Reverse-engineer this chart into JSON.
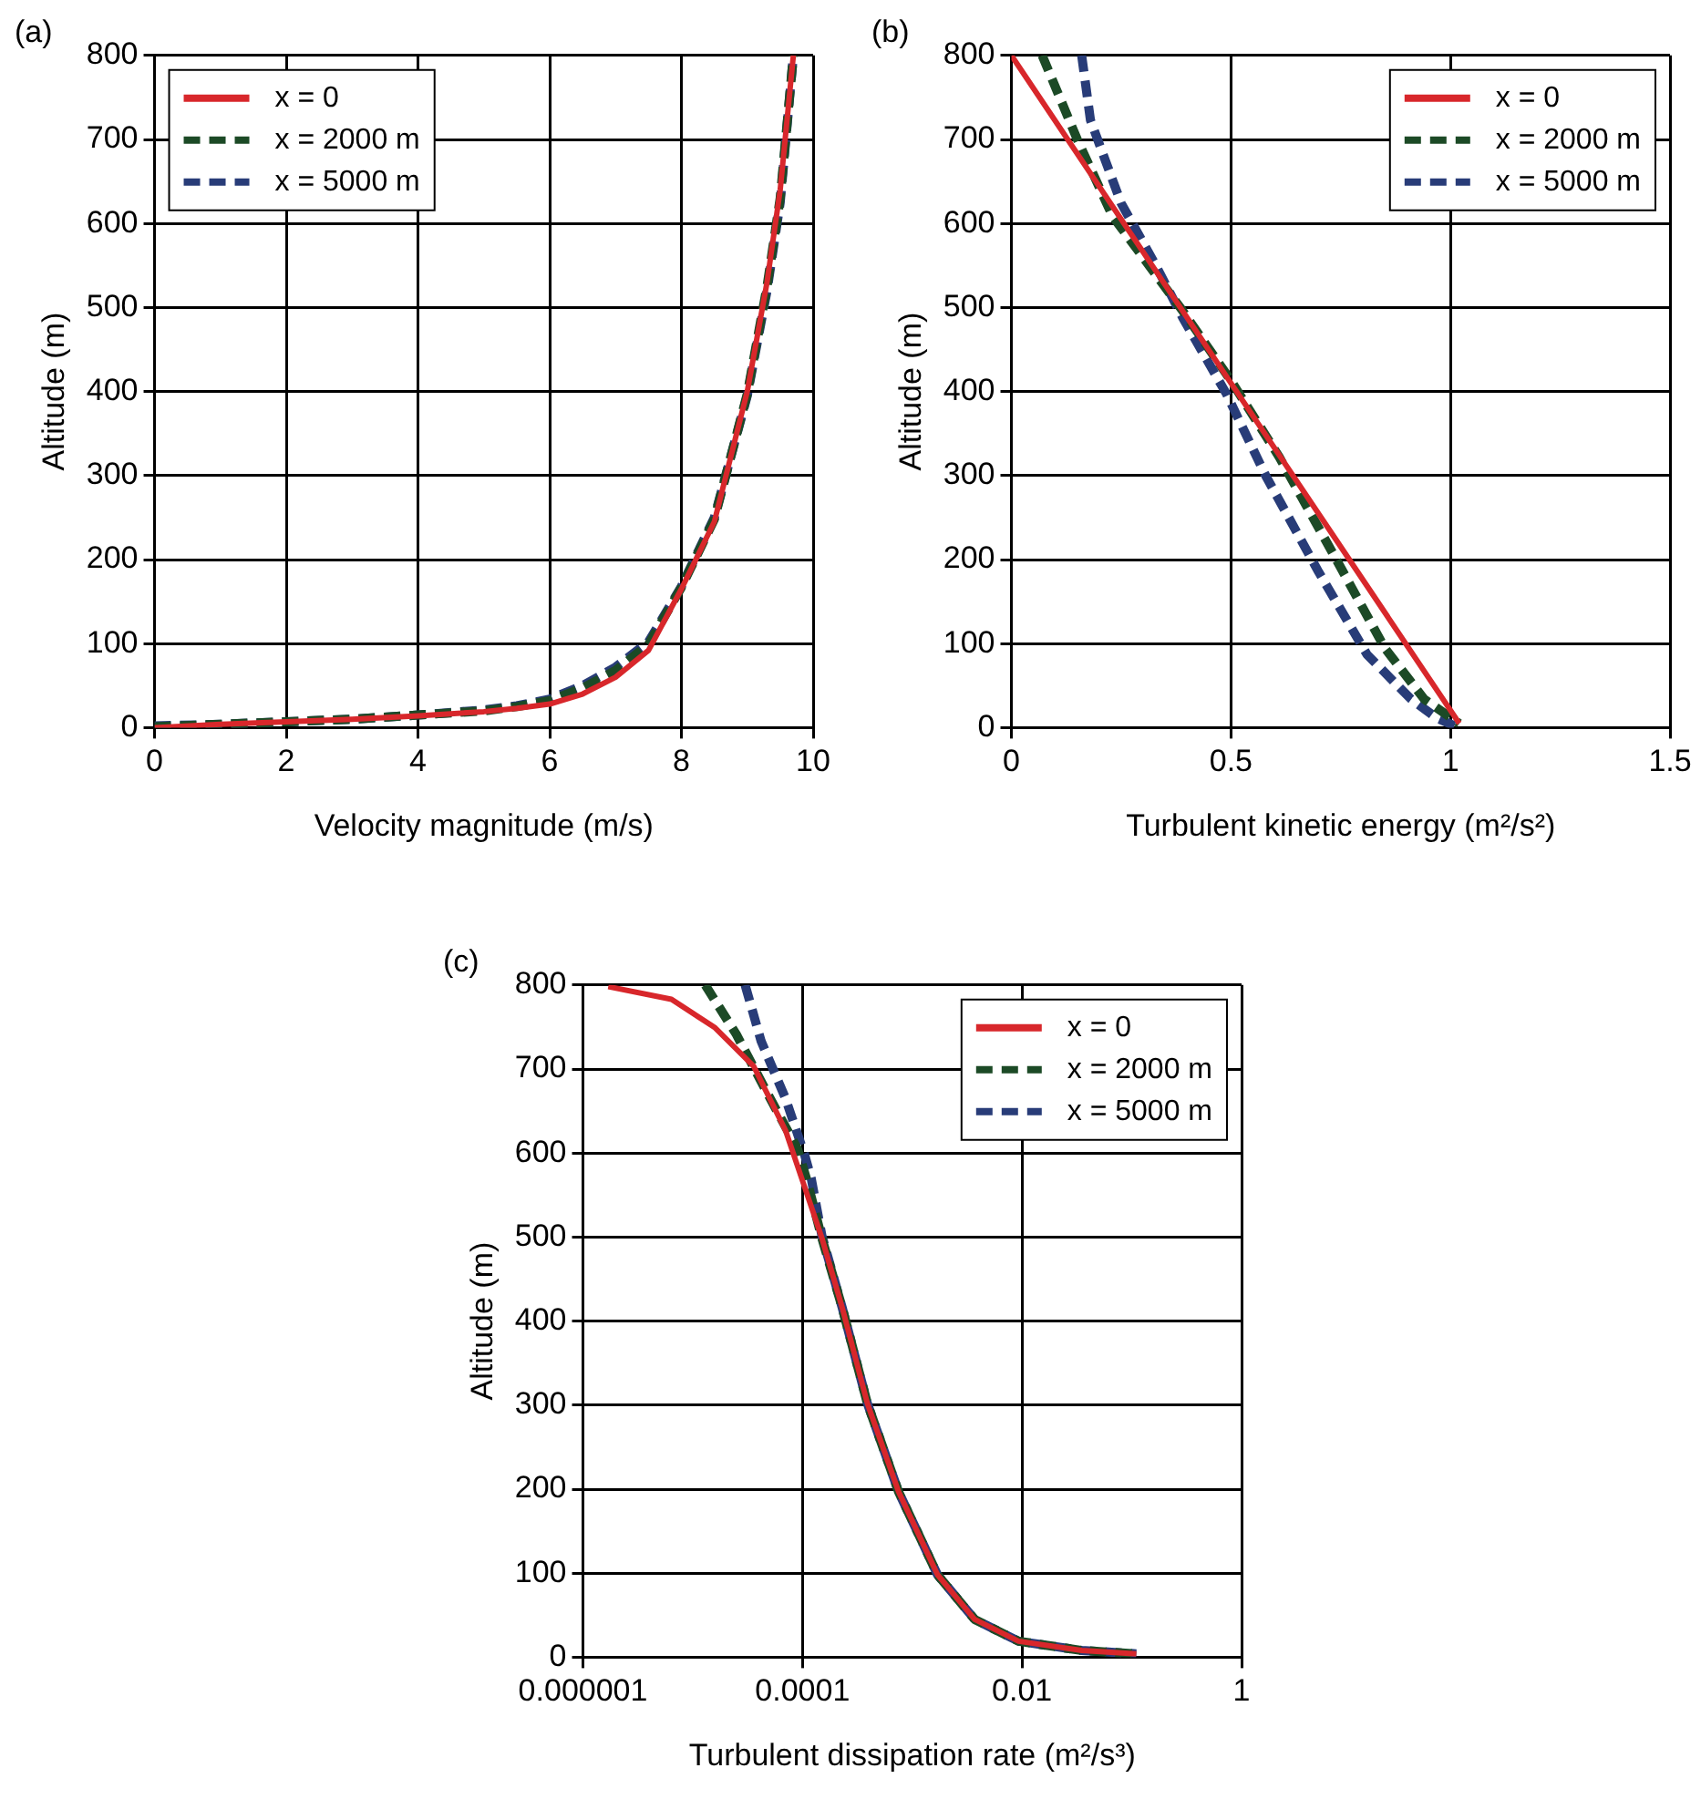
{
  "chart_data": [
    {
      "type": "line",
      "title": "(a)",
      "xlabel": "Velocity magnitude (m/s)",
      "ylabel": "Altitude (m)",
      "xlim": [
        0,
        10
      ],
      "xticks": [
        0,
        2,
        4,
        6,
        8,
        10
      ],
      "ylim": [
        0,
        800
      ],
      "yticks": [
        0,
        100,
        200,
        300,
        400,
        500,
        600,
        700,
        800
      ],
      "grid": true,
      "legend": "top left",
      "marker": "none",
      "series": [
        {
          "name": "x = 0",
          "color": "#d8272b",
          "line_style": "solid",
          "x": [
            0,
            1,
            2,
            3,
            4,
            5,
            5.5,
            6,
            6.5,
            7,
            7.5,
            8,
            8.5,
            9,
            9.3,
            9.5,
            9.7
          ],
          "values": [
            0,
            4,
            7,
            10,
            14,
            19,
            23,
            28,
            40,
            60,
            92,
            165,
            245,
            400,
            530,
            640,
            800
          ]
        },
        {
          "name": "x = 2000 m",
          "color": "#1c4a26",
          "line_style": "dashed",
          "x": [
            0,
            1,
            2,
            3,
            4,
            5,
            5.5,
            6,
            6.5,
            7,
            7.5,
            8,
            8.5,
            9,
            9.3,
            9.5,
            9.7
          ],
          "values": [
            1,
            4,
            7,
            10,
            15,
            20,
            25,
            32,
            47,
            68,
            99,
            167,
            248,
            397,
            525,
            630,
            800
          ]
        },
        {
          "name": "x = 5000 m",
          "color": "#283c78",
          "line_style": "dashed",
          "x": [
            0,
            1,
            2,
            3,
            4,
            5,
            5.5,
            6,
            6.5,
            7,
            7.5,
            8,
            8.5,
            9,
            9.3,
            9.5,
            9.7
          ],
          "values": [
            2,
            4,
            7,
            10,
            15,
            21,
            26,
            34,
            50,
            72,
            102,
            168,
            250,
            395,
            520,
            625,
            800
          ]
        }
      ]
    },
    {
      "type": "line",
      "title": "(b)",
      "xlabel": "Turbulent kinetic energy (m²/s²)",
      "ylabel": "Altitude (m)",
      "xlim": [
        0,
        1.5
      ],
      "xticks": [
        0,
        0.5,
        1,
        1.5
      ],
      "ylim": [
        0,
        800
      ],
      "yticks": [
        0,
        100,
        200,
        300,
        400,
        500,
        600,
        700,
        800
      ],
      "grid": true,
      "legend": "top right",
      "marker": "none",
      "series": [
        {
          "name": "x = 0",
          "color": "#d8272b",
          "line_style": "solid",
          "x": [
            0,
            0.5,
            1.02
          ],
          "values": [
            800,
            410,
            5
          ]
        },
        {
          "name": "x = 2000 m",
          "color": "#1c4a26",
          "line_style": "dashed",
          "x": [
            0.07,
            0.15,
            0.23,
            0.39,
            0.5,
            0.61,
            0.74,
            0.85,
            0.94,
            1.02
          ],
          "values": [
            800,
            700,
            609,
            496,
            413,
            322,
            200,
            95,
            34,
            5
          ]
        },
        {
          "name": "x = 5000 m",
          "color": "#283c78",
          "line_style": "dashed",
          "x": [
            0.16,
            0.18,
            0.25,
            0.33,
            0.39,
            0.49,
            0.58,
            0.7,
            0.81,
            0.91,
            0.97,
            1.01
          ],
          "values": [
            800,
            723,
            624,
            549,
            488,
            397,
            299,
            185,
            87,
            34,
            11,
            2
          ]
        }
      ]
    },
    {
      "type": "line",
      "title": "(c)",
      "xlabel": "Turbulent dissipation rate (m²/s³)",
      "ylabel": "Altitude (m)",
      "log": "x",
      "xlim": [
        1e-06,
        1
      ],
      "xticks": [
        {
          "value": 1e-06,
          "label": "0.000001"
        },
        0.0001,
        0.01,
        1
      ],
      "ylim": [
        0,
        800
      ],
      "yticks": [
        0,
        100,
        200,
        300,
        400,
        500,
        600,
        700,
        800
      ],
      "grid": true,
      "legend": "top right",
      "marker": "none",
      "series": [
        {
          "name": "x = 0",
          "color": "#d8272b",
          "line_style": "solid",
          "x": [
            1.7e-06,
            6.4e-06,
            1.6e-05,
            3.6e-05,
            7e-05,
            0.0001,
            0.00015,
            0.00023,
            0.00039,
            0.00075,
            0.0017,
            0.0037,
            0.0093,
            0.035,
            0.11
          ],
          "values": [
            798,
            783,
            749,
            703,
            627,
            567,
            499,
            416,
            302,
            197,
            98,
            45,
            19,
            8,
            4
          ]
        },
        {
          "name": "x = 2000 m",
          "color": "#1c4a26",
          "line_style": "dashed",
          "x": [
            1.3e-05,
            2.5e-05,
            4.7e-05,
            9e-05,
            0.00011,
            0.00015,
            0.00023,
            0.00039,
            0.00075,
            0.0017,
            0.0037,
            0.0093,
            0.035,
            0.11
          ],
          "values": [
            800,
            741,
            673,
            605,
            567,
            499,
            416,
            302,
            197,
            98,
            45,
            19,
            8,
            4
          ]
        },
        {
          "name": "x = 5000 m",
          "color": "#283c78",
          "line_style": "dashed",
          "x": [
            3e-05,
            4.2e-05,
            7e-05,
            0.000105,
            0.00012,
            0.00015,
            0.00023,
            0.00039,
            0.00075,
            0.0017,
            0.0037,
            0.0093,
            0.035,
            0.11
          ],
          "values": [
            800,
            733,
            665,
            597,
            570,
            502,
            416,
            302,
            197,
            98,
            45,
            19,
            8,
            4
          ]
        }
      ]
    }
  ]
}
